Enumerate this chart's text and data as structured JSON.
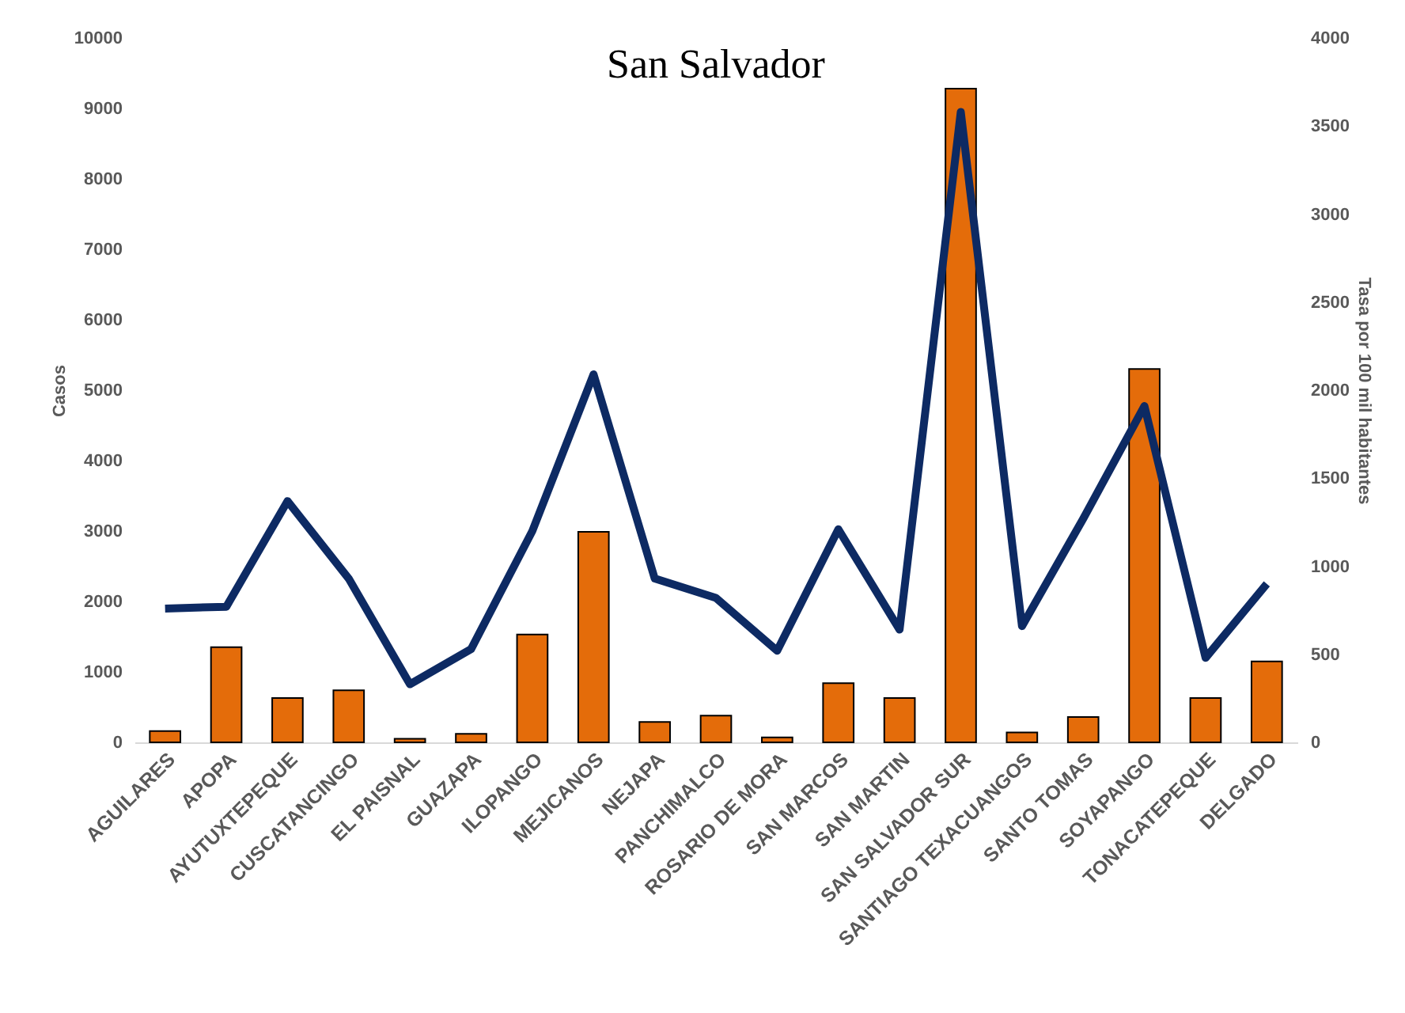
{
  "chart_data": {
    "type": "bar",
    "title": "San Salvador",
    "ylabel": "Casos",
    "y2label": "Tasa por 100 mil habitantes",
    "categories": [
      "AGUILARES",
      "APOPA",
      "AYUTUXTEPEQUE",
      "CUSCATANCINGO",
      "EL PAISNAL",
      "GUAZAPA",
      "ILOPANGO",
      "MEJICANOS",
      "NEJAPA",
      "PANCHIMALCO",
      "ROSARIO DE MORA",
      "SAN MARCOS",
      "SAN MARTIN",
      "SAN SALVADOR SUR",
      "SANTIAGO TEXACUANGOS",
      "SANTO TOMAS",
      "SOYAPANGO",
      "TONACATEPEQUE",
      "DELGADO"
    ],
    "series": [
      {
        "color": "#e46c0a",
        "values": [
          160,
          1350,
          630,
          740,
          50,
          120,
          1530,
          2990,
          290,
          380,
          70,
          840,
          630,
          9280,
          140,
          360,
          5300,
          630,
          1150
        ]
      },
      {
        "type": "line",
        "axis": "y2",
        "color": "#0d2a63",
        "values": [
          760,
          770,
          1370,
          930,
          330,
          530,
          1200,
          2090,
          930,
          820,
          520,
          1210,
          640,
          3580,
          660,
          1270,
          1910,
          480,
          900
        ]
      }
    ],
    "ylim": [
      0,
      10000
    ],
    "yticks": [
      0,
      1000,
      2000,
      3000,
      4000,
      5000,
      6000,
      7000,
      8000,
      9000,
      10000
    ],
    "y2lim": [
      0,
      4000
    ],
    "y2ticks": [
      0,
      500,
      1000,
      1500,
      2000,
      2500,
      3000,
      3500,
      4000
    ],
    "grid": false
  }
}
